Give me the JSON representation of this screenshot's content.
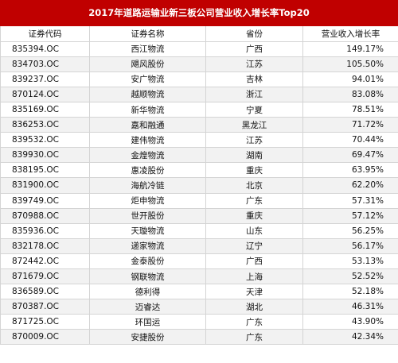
{
  "title": "2017年道路运输业新三板公司营业收入增长率Top20",
  "headers": [
    "证券代码",
    "证券名称",
    "省份",
    "营业收入增长率"
  ],
  "rows": [
    {
      "code": "835394.OC",
      "name": "西江物流",
      "province": "广西",
      "rate": "149.17%"
    },
    {
      "code": "834703.OC",
      "name": "飓风股份",
      "province": "江苏",
      "rate": "105.50%"
    },
    {
      "code": "839237.OC",
      "name": "安广物流",
      "province": "吉林",
      "rate": "94.01%"
    },
    {
      "code": "870124.OC",
      "name": "越顺物流",
      "province": "浙江",
      "rate": "83.08%"
    },
    {
      "code": "835169.OC",
      "name": "新华物流",
      "province": "宁夏",
      "rate": "78.51%"
    },
    {
      "code": "836253.OC",
      "name": "嘉和融通",
      "province": "黑龙江",
      "rate": "71.72%"
    },
    {
      "code": "839532.OC",
      "name": "建伟物流",
      "province": "江苏",
      "rate": "70.44%"
    },
    {
      "code": "839930.OC",
      "name": "金煌物流",
      "province": "湖南",
      "rate": "69.47%"
    },
    {
      "code": "838195.OC",
      "name": "惠凌股份",
      "province": "重庆",
      "rate": "63.95%"
    },
    {
      "code": "831900.OC",
      "name": "海航冷链",
      "province": "北京",
      "rate": "62.20%"
    },
    {
      "code": "839749.OC",
      "name": "炬申物流",
      "province": "广东",
      "rate": "57.31%"
    },
    {
      "code": "870988.OC",
      "name": "世开股份",
      "province": "重庆",
      "rate": "57.12%"
    },
    {
      "code": "835936.OC",
      "name": "天璇物流",
      "province": "山东",
      "rate": "56.25%"
    },
    {
      "code": "832178.OC",
      "name": "递家物流",
      "province": "辽宁",
      "rate": "56.17%"
    },
    {
      "code": "872442.OC",
      "name": "金泰股份",
      "province": "广西",
      "rate": "53.13%"
    },
    {
      "code": "871679.OC",
      "name": "钢联物流",
      "province": "上海",
      "rate": "52.52%"
    },
    {
      "code": "836589.OC",
      "name": "德利得",
      "province": "天津",
      "rate": "52.18%"
    },
    {
      "code": "870387.OC",
      "name": "迈睿达",
      "province": "湖北",
      "rate": "46.31%"
    },
    {
      "code": "871725.OC",
      "name": "环国运",
      "province": "广东",
      "rate": "43.90%"
    },
    {
      "code": "870009.OC",
      "name": "安捷股份",
      "province": "广东",
      "rate": "42.34%"
    }
  ],
  "colors": {
    "title_bg": "#c00000",
    "stripe": "#f2f2f2",
    "grid": "#d4d4d4"
  }
}
